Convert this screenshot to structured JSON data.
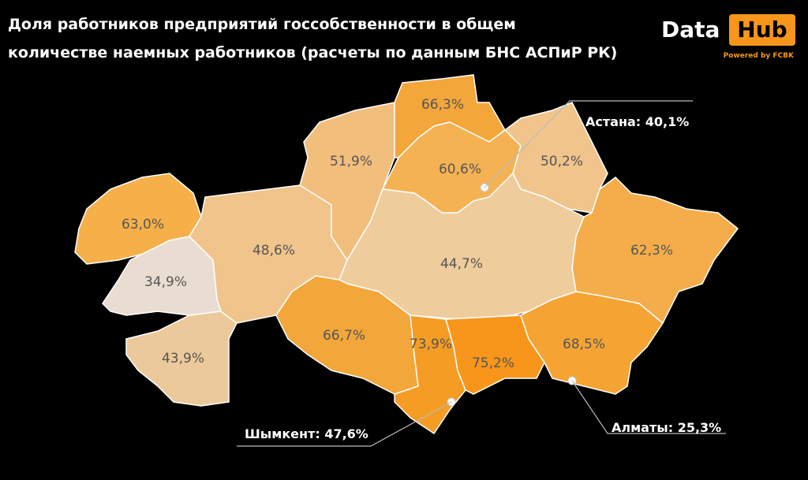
{
  "header": {
    "title_line1": "Доля работников предприятий госсобственности в общем",
    "title_line2": "количестве наемных работников (расчеты по данным БНС АСПиР РК)"
  },
  "logo": {
    "left": "Data",
    "right": "Hub",
    "tagline": "Powered by FCBK"
  },
  "regions": [
    {
      "label": "63,0%",
      "color": "#f5b04a"
    },
    {
      "label": "34,9%",
      "color": "#e8ddd0"
    },
    {
      "label": "43,9%",
      "color": "#ecc99a"
    },
    {
      "label": "48,6%",
      "color": "#f0c48a"
    },
    {
      "label": "51,9%",
      "color": "#f1be7c"
    },
    {
      "label": "66,3%",
      "color": "#f3a63a"
    },
    {
      "label": "60,6%",
      "color": "#f4b253"
    },
    {
      "label": "50,2%",
      "color": "#f0c48a"
    },
    {
      "label": "62,3%",
      "color": "#f4ad4a"
    },
    {
      "label": "44,7%",
      "color": "#efcc9c"
    },
    {
      "label": "66,7%",
      "color": "#f3a63a"
    },
    {
      "label": "73,9%",
      "color": "#f59c25"
    },
    {
      "label": "75,2%",
      "color": "#f7961a"
    },
    {
      "label": "68,5%",
      "color": "#f5a433"
    }
  ],
  "cities": [
    {
      "label": "Астана: 40,1%"
    },
    {
      "label": "Шымкент: 47,6%"
    },
    {
      "label": "Алматы: 25,3%"
    }
  ]
}
